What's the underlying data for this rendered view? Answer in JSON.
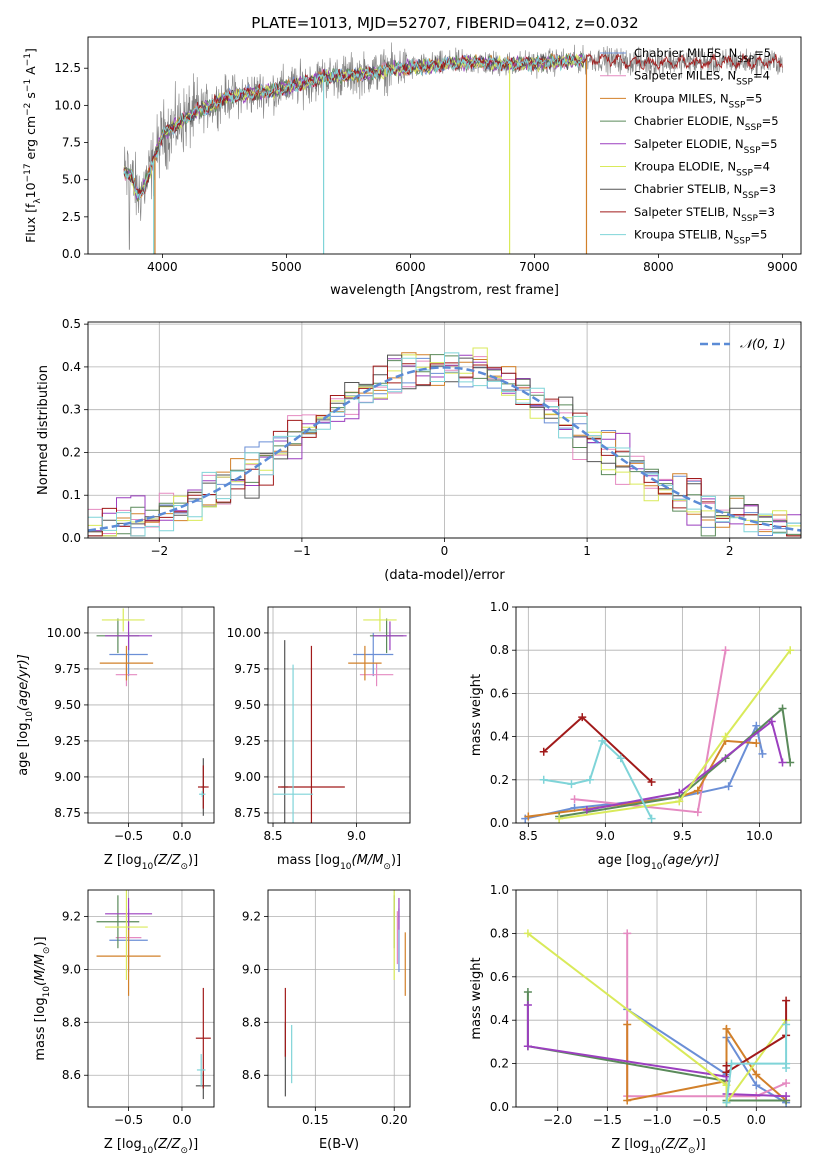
{
  "figure": {
    "title": "PLATE=1013, MJD=52707, FIBERID=0412, z=0.032"
  },
  "legend_series": [
    {
      "name": "Chabrier MILES, N",
      "sub": "SSP",
      "suffix": "=5",
      "color": "#6b8fd6"
    },
    {
      "name": "Salpeter MILES, N",
      "sub": "SSP",
      "suffix": "=4",
      "color": "#e58ac1"
    },
    {
      "name": "Kroupa MILES, N",
      "sub": "SSP",
      "suffix": "=5",
      "color": "#d2802a"
    },
    {
      "name": "Chabrier ELODIE, N",
      "sub": "SSP",
      "suffix": "=5",
      "color": "#5a8a5a"
    },
    {
      "name": "Salpeter ELODIE, N",
      "sub": "SSP",
      "suffix": "=5",
      "color": "#9b3fbf"
    },
    {
      "name": "Kroupa ELODIE, N",
      "sub": "SSP",
      "suffix": "=4",
      "color": "#d9ea5a"
    },
    {
      "name": "Chabrier STELIB, N",
      "sub": "SSP",
      "suffix": "=3",
      "color": "#555555"
    },
    {
      "name": "Salpeter STELIB, N",
      "sub": "SSP",
      "suffix": "=3",
      "color": "#a11a1a"
    },
    {
      "name": "Kroupa STELIB, N",
      "sub": "SSP",
      "suffix": "=5",
      "color": "#7fd4d8"
    }
  ],
  "chart_data": [
    {
      "id": "spectrum",
      "type": "line",
      "title": "PLATE=1013, MJD=52707, FIBERID=0412, z=0.032",
      "xlabel": "wavelength [Angstrom, rest frame]",
      "ylabel_parts": [
        "Flux [f",
        "λ",
        "10",
        "−17",
        " erg cm",
        "−2",
        " s",
        "−1",
        " A",
        "−1",
        "]"
      ],
      "xlim": [
        3400,
        9150
      ],
      "ylim": [
        0,
        14.6
      ],
      "xticks": [
        "4000",
        "5000",
        "6000",
        "7000",
        "8000",
        "9000"
      ],
      "xtick_values": [
        4000,
        5000,
        6000,
        7000,
        8000,
        9000
      ],
      "yticks": [
        "0.0",
        "2.5",
        "5.0",
        "7.5",
        "10.0",
        "12.5"
      ],
      "ytick_values": [
        0,
        2.5,
        5,
        7.5,
        10,
        12.5
      ],
      "grid": false,
      "legend_position": "right",
      "continuum": {
        "x": [
          3690,
          3750,
          3800,
          3850,
          3900,
          3950,
          4000,
          4100,
          4200,
          4300,
          4400,
          4500,
          4700,
          4900,
          5100,
          5300,
          5500,
          5700,
          5900,
          6100,
          6300,
          6500,
          6700,
          6900,
          7100,
          7300,
          7500,
          7700,
          7800
        ],
        "y": [
          5.5,
          5.3,
          3.9,
          4.5,
          5.5,
          6.8,
          8.0,
          8.6,
          9.2,
          9.7,
          10.0,
          10.5,
          10.8,
          11.0,
          11.4,
          11.9,
          12.0,
          12.2,
          12.5,
          12.6,
          12.8,
          12.9,
          12.8,
          12.8,
          12.9,
          13.0,
          13.1,
          13.0,
          12.9
        ]
      },
      "data_xmax": 9000,
      "model_xmax": 7400,
      "dropouts": [
        {
          "x": 3930,
          "series": "Kroupa STELIB, N"
        },
        {
          "x": 3940,
          "series": "Kroupa MILES, N"
        },
        {
          "x": 5300,
          "series": "Kroupa STELIB, N"
        },
        {
          "x": 6800,
          "series": "Kroupa ELODIE, N"
        },
        {
          "x": 7420,
          "series": "Kroupa MILES, N"
        }
      ]
    },
    {
      "id": "residuals",
      "type": "line",
      "xlabel": "(data-model)/error",
      "ylabel": "Normed distribution",
      "xlim": [
        -2.5,
        2.5
      ],
      "ylim": [
        0,
        0.505
      ],
      "xticks": [
        "−2",
        "−1",
        "0",
        "1",
        "2"
      ],
      "xtick_values": [
        -2,
        -1,
        0,
        1,
        2
      ],
      "yticks": [
        "0.0",
        "0.1",
        "0.2",
        "0.3",
        "0.4",
        "0.5"
      ],
      "ytick_values": [
        0,
        0.1,
        0.2,
        0.3,
        0.4,
        0.5
      ],
      "grid": true,
      "legend": {
        "label": "𝒩(0, 1)",
        "position": "top-right",
        "color": "#5b8bd6"
      },
      "bin_width": 0.1
    },
    {
      "id": "age_vs_Z",
      "type": "scatter",
      "xlabel": "Z [log",
      "xlabel_sub": "10",
      "xlabel_tail": "(Z/Z",
      "xlabel_end": ")]",
      "ylabel": "age  [log",
      "ylabel_sub": "10",
      "ylabel_tail": "(age/yr)]",
      "xlim": [
        -0.88,
        0.3
      ],
      "ylim": [
        8.68,
        10.18
      ],
      "xticks": [
        "−0.5",
        "0.0"
      ],
      "xtick_values": [
        -0.5,
        0.0
      ],
      "yticks": [
        "8.75",
        "9.00",
        "9.25",
        "9.50",
        "9.75",
        "10.00"
      ],
      "ytick_values": [
        8.75,
        9.0,
        9.25,
        9.5,
        9.75,
        10.0
      ],
      "grid": true,
      "points": [
        {
          "series": "Chabrier MILES, N",
          "x": -0.5,
          "xerr": 0.18,
          "y": 9.85,
          "yerr": 0.15
        },
        {
          "series": "Salpeter MILES, N",
          "x": -0.52,
          "xerr": 0.1,
          "y": 9.71,
          "yerr": 0.08
        },
        {
          "series": "Kroupa MILES, N",
          "x": -0.52,
          "xerr": 0.25,
          "y": 9.79,
          "yerr": 0.12
        },
        {
          "series": "Chabrier ELODIE, N",
          "x": -0.6,
          "xerr": 0.2,
          "y": 9.98,
          "yerr": 0.12
        },
        {
          "series": "Salpeter ELODIE, N",
          "x": -0.5,
          "xerr": 0.22,
          "y": 9.98,
          "yerr": 0.1
        },
        {
          "series": "Kroupa ELODIE, N",
          "x": -0.55,
          "xerr": 0.2,
          "y": 10.09,
          "yerr": 0.08
        },
        {
          "series": "Chabrier STELIB, N",
          "x": 0.2,
          "xerr": 0.02,
          "y": 8.93,
          "yerr": 0.2
        },
        {
          "series": "Salpeter STELIB, N",
          "x": 0.2,
          "xerr": 0.05,
          "y": 8.93,
          "yerr": 0.15
        },
        {
          "series": "Kroupa STELIB, N",
          "x": 0.19,
          "xerr": 0.03,
          "y": 8.88,
          "yerr": 0.02
        }
      ]
    },
    {
      "id": "age_vs_mass",
      "type": "scatter",
      "xlabel": "mass [log",
      "xlabel_sub": "10",
      "xlabel_tail": "(M/M",
      "xlabel_end": ")]",
      "xlim": [
        8.47,
        9.32
      ],
      "ylim": [
        8.68,
        10.18
      ],
      "xticks": [
        "8.5",
        "9.0"
      ],
      "xtick_values": [
        8.5,
        9.0
      ],
      "yticks": [
        "8.75",
        "9.00",
        "9.25",
        "9.50",
        "9.75",
        "10.00"
      ],
      "ytick_values": [
        8.75,
        9.0,
        9.25,
        9.5,
        9.75,
        10.0
      ],
      "grid": true,
      "points": [
        {
          "series": "Chabrier MILES, N",
          "x": 9.1,
          "xerr": 0.12,
          "y": 9.85,
          "yerr": 0.15
        },
        {
          "series": "Salpeter MILES, N",
          "x": 9.12,
          "xerr": 0.1,
          "y": 9.71,
          "yerr": 0.08
        },
        {
          "series": "Kroupa MILES, N",
          "x": 9.05,
          "xerr": 0.1,
          "y": 9.79,
          "yerr": 0.12
        },
        {
          "series": "Chabrier ELODIE, N",
          "x": 9.18,
          "xerr": 0.1,
          "y": 9.98,
          "yerr": 0.12
        },
        {
          "series": "Salpeter ELODIE, N",
          "x": 9.2,
          "xerr": 0.1,
          "y": 9.98,
          "yerr": 0.1
        },
        {
          "series": "Kroupa ELODIE, N",
          "x": 9.14,
          "xerr": 0.1,
          "y": 10.09,
          "yerr": 0.08
        },
        {
          "series": "Chabrier STELIB, N",
          "x": 8.57,
          "xerr": 0.02,
          "y": 8.93,
          "yerr": 1.02
        },
        {
          "series": "Salpeter STELIB, N",
          "x": 8.73,
          "xerr": 0.2,
          "y": 8.93,
          "yerr": 0.98
        },
        {
          "series": "Kroupa STELIB, N",
          "x": 8.62,
          "xerr": 0.12,
          "y": 8.88,
          "yerr": 0.9
        }
      ]
    },
    {
      "id": "weight_vs_age",
      "type": "line",
      "xlabel": "age  [log",
      "xlabel_sub": "10",
      "xlabel_tail": "(age/yr)]",
      "ylabel": "mass weight",
      "xlim": [
        8.42,
        10.27
      ],
      "ylim": [
        0,
        1.0
      ],
      "xticks": [
        "8.5",
        "9.0",
        "9.5",
        "10.0"
      ],
      "xtick_values": [
        8.5,
        9.0,
        9.5,
        10.0
      ],
      "yticks": [
        "0.0",
        "0.2",
        "0.4",
        "0.6",
        "0.8",
        "1.0"
      ],
      "ytick_values": [
        0,
        0.2,
        0.4,
        0.6,
        0.8,
        1.0
      ],
      "grid": true,
      "series": [
        {
          "name": "Chabrier MILES, N",
          "x": [
            8.48,
            8.8,
            9.48,
            9.8,
            9.98,
            10.02
          ],
          "y": [
            0.02,
            0.07,
            0.12,
            0.17,
            0.45,
            0.32
          ]
        },
        {
          "name": "Salpeter MILES, N",
          "x": [
            8.8,
            9.6,
            9.78
          ],
          "y": [
            0.11,
            0.05,
            0.8
          ]
        },
        {
          "name": "Kroupa MILES, N",
          "x": [
            8.5,
            9.48,
            9.6,
            9.78,
            9.98
          ],
          "y": [
            0.03,
            0.12,
            0.15,
            0.38,
            0.37
          ]
        },
        {
          "name": "Chabrier ELODIE, N",
          "x": [
            8.7,
            9.48,
            9.78,
            10.15,
            10.2
          ],
          "y": [
            0.03,
            0.12,
            0.3,
            0.53,
            0.28
          ]
        },
        {
          "name": "Salpeter ELODIE, N",
          "x": [
            8.88,
            9.48,
            10.08,
            10.15
          ],
          "y": [
            0.06,
            0.14,
            0.47,
            0.28
          ]
        },
        {
          "name": "Kroupa ELODIE, N",
          "x": [
            8.7,
            9.48,
            9.78,
            10.2
          ],
          "y": [
            0.02,
            0.1,
            0.4,
            0.8
          ]
        },
        {
          "name": "Salpeter STELIB, N",
          "x": [
            8.6,
            8.85,
            9.3
          ],
          "y": [
            0.33,
            0.49,
            0.19
          ]
        },
        {
          "name": "Kroupa STELIB, N",
          "x": [
            8.6,
            8.78,
            8.9,
            8.98,
            9.1,
            9.3
          ],
          "y": [
            0.2,
            0.18,
            0.2,
            0.38,
            0.3,
            0.02
          ]
        }
      ]
    },
    {
      "id": "mass_vs_Z",
      "type": "scatter",
      "xlabel": "Z [log",
      "xlabel_sub": "10",
      "xlabel_tail": "(Z/Z",
      "xlabel_end": ")]",
      "ylabel": "mass [log",
      "ylabel_sub": "10",
      "ylabel_tail": "(M/M",
      "ylabel_end": ")]",
      "xlim": [
        -0.88,
        0.3
      ],
      "ylim": [
        8.48,
        9.3
      ],
      "xticks": [
        "−0.5",
        "0.0"
      ],
      "xtick_values": [
        -0.5,
        0.0
      ],
      "yticks": [
        "8.6",
        "8.8",
        "9.0",
        "9.2"
      ],
      "ytick_values": [
        8.6,
        8.8,
        9.0,
        9.2
      ],
      "grid": true,
      "points": [
        {
          "series": "Chabrier MILES, N",
          "x": -0.5,
          "xerr": 0.18,
          "y": 9.11,
          "yerr": 0.12
        },
        {
          "series": "Salpeter MILES, N",
          "x": -0.5,
          "xerr": 0.12,
          "y": 9.12,
          "yerr": 0.1
        },
        {
          "series": "Kroupa MILES, N",
          "x": -0.5,
          "xerr": 0.3,
          "y": 9.05,
          "yerr": 0.15
        },
        {
          "series": "Chabrier ELODIE, N",
          "x": -0.6,
          "xerr": 0.2,
          "y": 9.18,
          "yerr": 0.1
        },
        {
          "series": "Salpeter ELODIE, N",
          "x": -0.5,
          "xerr": 0.22,
          "y": 9.21,
          "yerr": 0.06
        },
        {
          "series": "Kroupa ELODIE, N",
          "x": -0.52,
          "xerr": 0.2,
          "y": 9.16,
          "yerr": 0.2
        },
        {
          "series": "Chabrier STELIB, N",
          "x": 0.2,
          "xerr": 0.07,
          "y": 8.56,
          "yerr": 0.05
        },
        {
          "series": "Salpeter STELIB, N",
          "x": 0.2,
          "xerr": 0.07,
          "y": 8.74,
          "yerr": 0.19
        },
        {
          "series": "Kroupa STELIB, N",
          "x": 0.18,
          "xerr": 0.04,
          "y": 8.62,
          "yerr": 0.06
        }
      ]
    },
    {
      "id": "mass_vs_ebv",
      "type": "scatter",
      "xlabel": "E(B-V)",
      "xlim": [
        0.12,
        0.21
      ],
      "ylim": [
        8.48,
        9.3
      ],
      "xticks": [
        "0.15",
        "0.20"
      ],
      "xtick_values": [
        0.15,
        0.2
      ],
      "yticks": [
        "8.6",
        "8.8",
        "9.0",
        "9.2"
      ],
      "ytick_values": [
        8.6,
        8.8,
        9.0,
        9.2
      ],
      "grid": true,
      "points": [
        {
          "series": "Chabrier MILES, N",
          "x": 0.203,
          "y": 9.11,
          "yerr": 0.12
        },
        {
          "series": "Salpeter MILES, N",
          "x": 0.202,
          "y": 9.12,
          "yerr": 0.1
        },
        {
          "series": "Kroupa MILES, N",
          "x": 0.207,
          "y": 9.02,
          "yerr": 0.12
        },
        {
          "series": "Chabrier ELODIE, N",
          "x": 0.2,
          "y": 9.18,
          "yerr": 0.1
        },
        {
          "series": "Salpeter ELODIE, N",
          "x": 0.203,
          "y": 9.21,
          "yerr": 0.06
        },
        {
          "series": "Kroupa ELODIE, N",
          "x": 0.2,
          "y": 9.16,
          "yerr": 0.2
        },
        {
          "series": "Chabrier STELIB, N",
          "x": 0.131,
          "y": 8.66,
          "yerr": 0.14
        },
        {
          "series": "Salpeter STELIB, N",
          "x": 0.131,
          "y": 8.8,
          "yerr": 0.13
        },
        {
          "series": "Kroupa STELIB, N",
          "x": 0.135,
          "y": 8.68,
          "yerr": 0.11
        }
      ]
    },
    {
      "id": "weight_vs_Z",
      "type": "line",
      "xlabel": "Z [log",
      "xlabel_sub": "10",
      "xlabel_tail": "(Z/Z",
      "xlabel_end": ")]",
      "ylabel": "mass weight",
      "xlim": [
        -2.42,
        0.45
      ],
      "ylim": [
        0,
        1.0
      ],
      "xticks": [
        "−2.0",
        "−1.5",
        "−1.0",
        "−0.5",
        "0.0"
      ],
      "xtick_values": [
        -2.0,
        -1.5,
        -1.0,
        -0.5,
        0.0
      ],
      "yticks": [
        "0.0",
        "0.2",
        "0.4",
        "0.6",
        "0.8",
        "1.0"
      ],
      "ytick_values": [
        0,
        0.2,
        0.4,
        0.6,
        0.8,
        1.0
      ],
      "grid": true,
      "series": [
        {
          "name": "Chabrier MILES, N",
          "x": [
            -1.3,
            -0.3,
            -0.3,
            0.0,
            0.3
          ],
          "y": [
            0.45,
            0.15,
            0.32,
            0.1,
            0.02
          ]
        },
        {
          "name": "Salpeter MILES, N",
          "x": [
            -1.3,
            -1.3,
            -0.3,
            0.0,
            0.3
          ],
          "y": [
            0.8,
            0.05,
            0.05,
            0.05,
            0.11
          ]
        },
        {
          "name": "Kroupa MILES, N",
          "x": [
            -1.3,
            -1.3,
            -0.3,
            -0.3,
            0.0,
            0.3
          ],
          "y": [
            0.38,
            0.03,
            0.12,
            0.36,
            0.15,
            0.03
          ]
        },
        {
          "name": "Chabrier ELODIE, N",
          "x": [
            -2.3,
            -2.3,
            -0.3,
            -0.3,
            0.3
          ],
          "y": [
            0.53,
            0.28,
            0.12,
            0.03,
            0.03
          ]
        },
        {
          "name": "Salpeter ELODIE, N",
          "x": [
            -2.3,
            -2.3,
            -0.3,
            -0.3,
            0.3
          ],
          "y": [
            0.47,
            0.28,
            0.14,
            0.06,
            0.05
          ]
        },
        {
          "name": "Kroupa ELODIE, N",
          "x": [
            -2.3,
            -0.3,
            -0.3,
            0.3
          ],
          "y": [
            0.8,
            0.1,
            0.02,
            0.4
          ]
        },
        {
          "name": "Salpeter STELIB, N",
          "x": [
            -0.3,
            -0.3,
            0.3,
            0.3
          ],
          "y": [
            0.19,
            0.16,
            0.33,
            0.49
          ]
        },
        {
          "name": "Kroupa STELIB, N",
          "x": [
            -0.3,
            -0.25,
            0.3,
            0.3,
            0.3
          ],
          "y": [
            0.02,
            0.2,
            0.2,
            0.38,
            0.18
          ]
        }
      ]
    }
  ]
}
